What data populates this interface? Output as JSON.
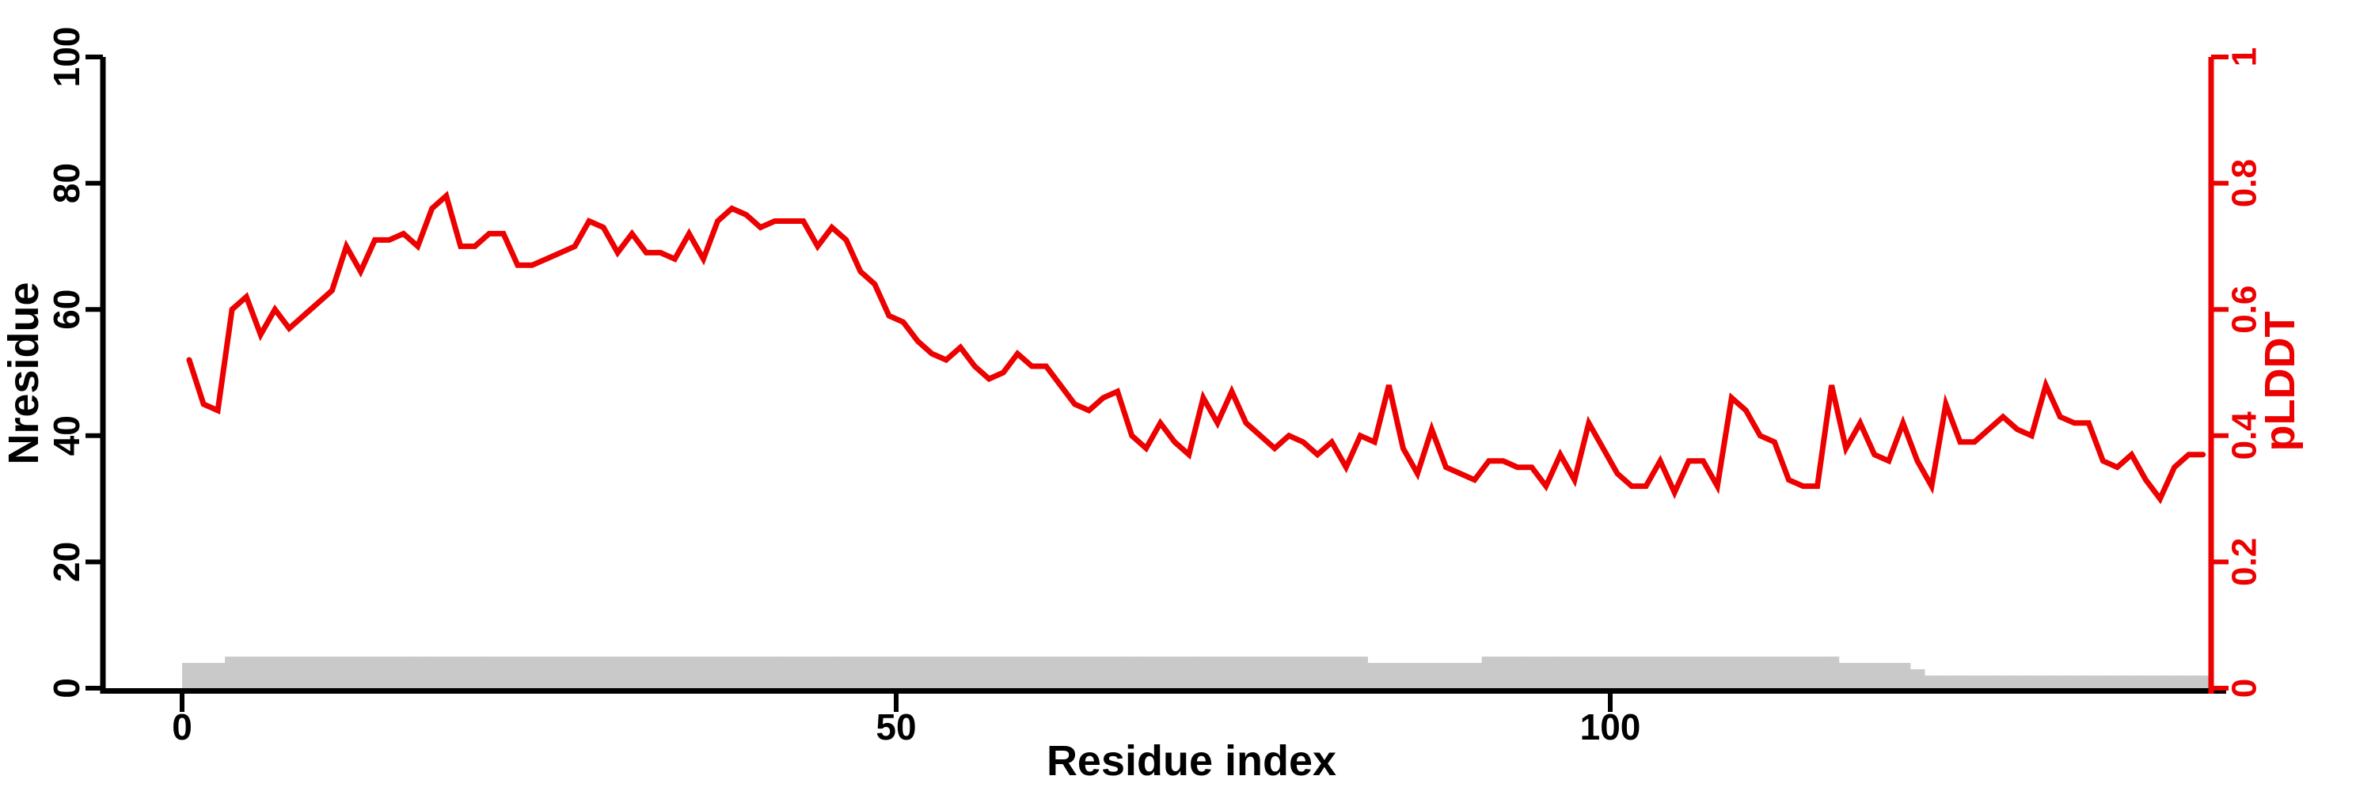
{
  "chart_data": {
    "type": "line",
    "title": "",
    "xlabel": "Residue index",
    "ylabel_left": "Nresidue",
    "ylabel_right": "pLDDT",
    "xlim": [
      0,
      145
    ],
    "left_ylim": [
      0,
      100
    ],
    "right_ylim": [
      0,
      1
    ],
    "grid": false,
    "legend": "none",
    "x_tick_labels": [
      "0",
      "50",
      "100"
    ],
    "x_tick_values": [
      0,
      50,
      100
    ],
    "left_tick_labels": [
      "0",
      "20",
      "40",
      "60",
      "80",
      "100"
    ],
    "left_tick_values": [
      0,
      20,
      40,
      60,
      80,
      100
    ],
    "right_tick_labels": [
      "0",
      "0.2",
      "0.4",
      "0.6",
      "0.8",
      "1"
    ],
    "right_tick_values": [
      0,
      0.2,
      0.4,
      0.6,
      0.8,
      1
    ],
    "residue_start": 1,
    "colors": {
      "line": "#ed0000",
      "bars": "#c9c9c9",
      "left_axis": "#000000",
      "right_axis": "#ed0000"
    },
    "series": [
      {
        "name": "pLDDT",
        "type": "line",
        "axis": "right",
        "color": "#ed0000",
        "values": [
          0.52,
          0.45,
          0.44,
          0.6,
          0.62,
          0.56,
          0.6,
          0.57,
          0.59,
          0.61,
          0.63,
          0.7,
          0.66,
          0.71,
          0.71,
          0.72,
          0.7,
          0.76,
          0.78,
          0.7,
          0.7,
          0.72,
          0.72,
          0.67,
          0.67,
          0.68,
          0.69,
          0.7,
          0.74,
          0.73,
          0.69,
          0.72,
          0.69,
          0.69,
          0.68,
          0.72,
          0.68,
          0.74,
          0.76,
          0.75,
          0.73,
          0.74,
          0.74,
          0.74,
          0.7,
          0.73,
          0.71,
          0.66,
          0.64,
          0.59,
          0.58,
          0.55,
          0.53,
          0.52,
          0.54,
          0.51,
          0.49,
          0.5,
          0.53,
          0.51,
          0.51,
          0.48,
          0.45,
          0.44,
          0.46,
          0.47,
          0.4,
          0.38,
          0.42,
          0.39,
          0.37,
          0.46,
          0.42,
          0.47,
          0.42,
          0.4,
          0.38,
          0.4,
          0.39,
          0.37,
          0.39,
          0.35,
          0.4,
          0.39,
          0.48,
          0.38,
          0.34,
          0.41,
          0.35,
          0.34,
          0.33,
          0.36,
          0.36,
          0.35,
          0.35,
          0.32,
          0.37,
          0.33,
          0.42,
          0.38,
          0.34,
          0.32,
          0.32,
          0.36,
          0.31,
          0.36,
          0.36,
          0.32,
          0.46,
          0.44,
          0.4,
          0.39,
          0.33,
          0.32,
          0.32,
          0.48,
          0.38,
          0.42,
          0.37,
          0.36,
          0.42,
          0.36,
          0.32,
          0.45,
          0.39,
          0.39,
          0.41,
          0.43,
          0.41,
          0.4,
          0.48,
          0.43,
          0.42,
          0.42,
          0.36,
          0.35,
          0.37,
          0.33,
          0.3,
          0.35,
          0.37,
          0.37
        ]
      },
      {
        "name": "Nresidue",
        "type": "bar",
        "axis": "left",
        "color": "#c9c9c9",
        "values": [
          4,
          4,
          4,
          5,
          5,
          5,
          5,
          5,
          5,
          5,
          5,
          5,
          5,
          5,
          5,
          5,
          5,
          5,
          5,
          5,
          5,
          5,
          5,
          5,
          5,
          5,
          5,
          5,
          5,
          5,
          5,
          5,
          5,
          5,
          5,
          5,
          5,
          5,
          5,
          5,
          5,
          5,
          5,
          5,
          5,
          5,
          5,
          5,
          5,
          5,
          5,
          5,
          5,
          5,
          5,
          5,
          5,
          5,
          5,
          5,
          5,
          5,
          5,
          5,
          5,
          5,
          5,
          5,
          5,
          5,
          5,
          5,
          5,
          5,
          5,
          5,
          5,
          5,
          5,
          5,
          5,
          5,
          5,
          4,
          4,
          4,
          4,
          4,
          4,
          4,
          4,
          5,
          5,
          5,
          5,
          5,
          5,
          5,
          5,
          5,
          5,
          5,
          5,
          5,
          5,
          5,
          5,
          5,
          5,
          5,
          5,
          5,
          5,
          5,
          5,
          5,
          4,
          4,
          4,
          4,
          4,
          3,
          2,
          2,
          2,
          2,
          2,
          2,
          2,
          2,
          2,
          2,
          2,
          2,
          2,
          2,
          2,
          2,
          2,
          2,
          2,
          2
        ]
      }
    ]
  }
}
